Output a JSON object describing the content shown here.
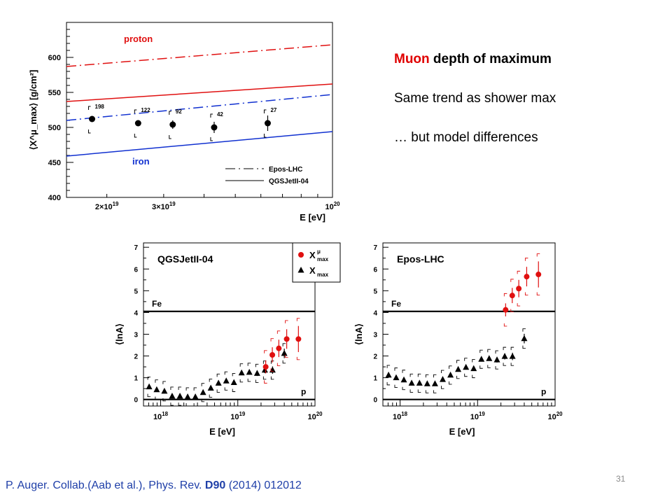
{
  "slide": {
    "bullets": {
      "line1_highlight": "Muon",
      "line1_rest": " depth of maximum",
      "line2": "Same trend as shower max",
      "line3": "… but model differences"
    },
    "citation": {
      "prefix": "P. Auger. Collab.(Aab et al.),    Phys. Rev. ",
      "volume": "D90",
      "suffix": " (2014) 012012"
    },
    "page_number": "31"
  },
  "chart_data": [
    {
      "type": "line",
      "title": "",
      "xlabel": "E [eV]",
      "ylabel": "⟨X^μ_max⟩ [g/cm²]",
      "x_scale": "log",
      "xlim": [
        1.5e+19,
        1e+20
      ],
      "ylim": [
        400,
        650
      ],
      "x_ticks": [
        {
          "value": 2e+19,
          "mantissa": "2×10",
          "exp": "19"
        },
        {
          "value": 3e+19,
          "mantissa": "3×10",
          "exp": "19"
        },
        {
          "value": 1e+20,
          "mantissa": "10",
          "exp": "20"
        }
      ],
      "y_ticks": [
        400,
        450,
        500,
        550,
        600
      ],
      "annotations": {
        "proton": "proton",
        "iron": "iron"
      },
      "legend": {
        "position": "bottom-right",
        "entries": [
          {
            "label": "Epos-LHC",
            "style": "dash-dot"
          },
          {
            "label": "QGSJetII-04",
            "style": "solid"
          }
        ]
      },
      "colors": {
        "proton": "#e01010",
        "iron": "#1030d0",
        "data": "#000000"
      },
      "series": [
        {
          "label": "proton",
          "model": "Epos-LHC",
          "style": "dash-dot",
          "color_key": "proton",
          "x": [
            1.5e+19,
            1e+20
          ],
          "y": [
            587,
            618
          ]
        },
        {
          "label": "proton",
          "model": "QGSJetII-04",
          "style": "solid",
          "color_key": "proton",
          "x": [
            1.5e+19,
            1e+20
          ],
          "y": [
            537,
            562
          ]
        },
        {
          "label": "iron",
          "model": "Epos-LHC",
          "style": "dash-dot",
          "color_key": "iron",
          "x": [
            1.5e+19,
            1e+20
          ],
          "y": [
            510,
            547
          ]
        },
        {
          "label": "iron",
          "model": "QGSJetII-04",
          "style": "solid",
          "color_key": "iron",
          "x": [
            1.5e+19,
            1e+20
          ],
          "y": [
            459,
            494
          ]
        }
      ],
      "points": [
        {
          "x": 1.8e+19,
          "y": 512,
          "err": 4,
          "sys_lo": 492,
          "sys_hi": 530,
          "n": "198"
        },
        {
          "x": 2.5e+19,
          "y": 506,
          "err": 4,
          "sys_lo": 486,
          "sys_hi": 525,
          "n": "122"
        },
        {
          "x": 3.2e+19,
          "y": 504,
          "err": 6,
          "sys_lo": 484,
          "sys_hi": 523,
          "n": "92"
        },
        {
          "x": 4.3e+19,
          "y": 500,
          "err": 8,
          "sys_lo": 481,
          "sys_hi": 519,
          "n": "42"
        },
        {
          "x": 6.3e+19,
          "y": 506,
          "err": 11,
          "sys_lo": 486,
          "sys_hi": 525,
          "n": "27"
        }
      ]
    },
    {
      "type": "scatter",
      "title": "QGSJetII-04",
      "xlabel": "E [eV]",
      "ylabel": "⟨lnA⟩",
      "x_scale": "log",
      "xlim": [
        6e+17,
        1e+20
      ],
      "ylim": [
        -0.3,
        7.2
      ],
      "x_ticks": [
        {
          "value": 1e+18,
          "mantissa": "10",
          "exp": "18"
        },
        {
          "value": 1e+19,
          "mantissa": "10",
          "exp": "19"
        },
        {
          "value": 1e+20,
          "mantissa": "10",
          "exp": "20"
        }
      ],
      "y_ticks": [
        0,
        1,
        2,
        3,
        4,
        5,
        6,
        7
      ],
      "reference_lines": [
        {
          "y": 4.05,
          "label": "Fe"
        },
        {
          "y": 0,
          "label": "p"
        }
      ],
      "legend": {
        "position": "top-right-outside",
        "entries": [
          {
            "base": "X",
            "sup": "μ",
            "sub": "max",
            "marker": "circle",
            "color": "#e01010"
          },
          {
            "base": "X",
            "sup": "",
            "sub": "max",
            "marker": "triangle",
            "color": "#000000"
          }
        ]
      },
      "series": [
        {
          "name": "X_max",
          "marker": "triangle",
          "color": "#000000",
          "points": [
            {
              "x": 7.1e+17,
              "y": 0.58,
              "err": 0.1,
              "sys": 0.45
            },
            {
              "x": 8.9e+17,
              "y": 0.45,
              "err": 0.08,
              "sys": 0.45
            },
            {
              "x": 1.12e+18,
              "y": 0.38,
              "err": 0.08,
              "sys": 0.45
            },
            {
              "x": 1.41e+18,
              "y": 0.15,
              "err": 0.07,
              "sys": 0.42
            },
            {
              "x": 1.78e+18,
              "y": 0.15,
              "err": 0.07,
              "sys": 0.42
            },
            {
              "x": 2.24e+18,
              "y": 0.12,
              "err": 0.07,
              "sys": 0.42
            },
            {
              "x": 2.82e+18,
              "y": 0.12,
              "err": 0.07,
              "sys": 0.42
            },
            {
              "x": 3.55e+18,
              "y": 0.32,
              "err": 0.07,
              "sys": 0.42
            },
            {
              "x": 4.47e+18,
              "y": 0.52,
              "err": 0.07,
              "sys": 0.42
            },
            {
              "x": 5.62e+18,
              "y": 0.75,
              "err": 0.08,
              "sys": 0.42
            },
            {
              "x": 7.08e+18,
              "y": 0.85,
              "err": 0.08,
              "sys": 0.42
            },
            {
              "x": 8.91e+18,
              "y": 0.78,
              "err": 0.08,
              "sys": 0.42
            },
            {
              "x": 1.12e+19,
              "y": 1.22,
              "err": 0.09,
              "sys": 0.42
            },
            {
              "x": 1.41e+19,
              "y": 1.25,
              "err": 0.1,
              "sys": 0.42
            },
            {
              "x": 1.78e+19,
              "y": 1.2,
              "err": 0.12,
              "sys": 0.42
            },
            {
              "x": 2.24e+19,
              "y": 1.35,
              "err": 0.14,
              "sys": 0.42
            },
            {
              "x": 2.82e+19,
              "y": 1.35,
              "err": 0.17,
              "sys": 0.42
            },
            {
              "x": 4e+19,
              "y": 2.12,
              "err": 0.22,
              "sys": 0.45
            }
          ]
        },
        {
          "name": "X^mu_max",
          "marker": "circle",
          "color": "#e01010",
          "points": [
            {
              "x": 2.3e+19,
              "y": 1.5,
              "err": 0.3,
              "sys": 0.75
            },
            {
              "x": 2.8e+19,
              "y": 2.05,
              "err": 0.35,
              "sys": 0.75
            },
            {
              "x": 3.4e+19,
              "y": 2.35,
              "err": 0.4,
              "sys": 0.8
            },
            {
              "x": 4.3e+19,
              "y": 2.78,
              "err": 0.45,
              "sys": 0.85
            },
            {
              "x": 6.1e+19,
              "y": 2.78,
              "err": 0.6,
              "sys": 0.95
            }
          ]
        }
      ]
    },
    {
      "type": "scatter",
      "title": "Epos-LHC",
      "xlabel": "E [eV]",
      "ylabel": "⟨lnA⟩",
      "x_scale": "log",
      "xlim": [
        6e+17,
        1e+20
      ],
      "ylim": [
        -0.3,
        7.2
      ],
      "x_ticks": [
        {
          "value": 1e+18,
          "mantissa": "10",
          "exp": "18"
        },
        {
          "value": 1e+19,
          "mantissa": "10",
          "exp": "19"
        },
        {
          "value": 1e+20,
          "mantissa": "10",
          "exp": "20"
        }
      ],
      "y_ticks": [
        0,
        1,
        2,
        3,
        4,
        5,
        6,
        7
      ],
      "reference_lines": [
        {
          "y": 4.05,
          "label": "Fe"
        },
        {
          "y": 0,
          "label": "p"
        }
      ],
      "series": [
        {
          "name": "X_max",
          "marker": "triangle",
          "color": "#000000",
          "points": [
            {
              "x": 7.1e+17,
              "y": 1.12,
              "err": 0.1,
              "sys": 0.45
            },
            {
              "x": 8.9e+17,
              "y": 1.0,
              "err": 0.08,
              "sys": 0.45
            },
            {
              "x": 1.12e+18,
              "y": 0.9,
              "err": 0.08,
              "sys": 0.45
            },
            {
              "x": 1.41e+18,
              "y": 0.75,
              "err": 0.07,
              "sys": 0.42
            },
            {
              "x": 1.78e+18,
              "y": 0.75,
              "err": 0.07,
              "sys": 0.42
            },
            {
              "x": 2.24e+18,
              "y": 0.72,
              "err": 0.07,
              "sys": 0.42
            },
            {
              "x": 2.82e+18,
              "y": 0.72,
              "err": 0.07,
              "sys": 0.42
            },
            {
              "x": 3.55e+18,
              "y": 0.92,
              "err": 0.07,
              "sys": 0.42
            },
            {
              "x": 4.47e+18,
              "y": 1.12,
              "err": 0.07,
              "sys": 0.42
            },
            {
              "x": 5.62e+18,
              "y": 1.38,
              "err": 0.08,
              "sys": 0.42
            },
            {
              "x": 7.08e+18,
              "y": 1.48,
              "err": 0.08,
              "sys": 0.42
            },
            {
              "x": 8.91e+18,
              "y": 1.42,
              "err": 0.08,
              "sys": 0.42
            },
            {
              "x": 1.12e+19,
              "y": 1.85,
              "err": 0.09,
              "sys": 0.42
            },
            {
              "x": 1.41e+19,
              "y": 1.88,
              "err": 0.1,
              "sys": 0.42
            },
            {
              "x": 1.78e+19,
              "y": 1.82,
              "err": 0.12,
              "sys": 0.42
            },
            {
              "x": 2.24e+19,
              "y": 1.98,
              "err": 0.14,
              "sys": 0.42
            },
            {
              "x": 2.82e+19,
              "y": 1.98,
              "err": 0.17,
              "sys": 0.42
            },
            {
              "x": 4e+19,
              "y": 2.8,
              "err": 0.22,
              "sys": 0.45
            }
          ]
        },
        {
          "name": "X^mu_max",
          "marker": "circle",
          "color": "#e01010",
          "points": [
            {
              "x": 2.3e+19,
              "y": 4.12,
              "err": 0.3,
              "sys": 0.75
            },
            {
              "x": 2.8e+19,
              "y": 4.78,
              "err": 0.35,
              "sys": 0.75
            },
            {
              "x": 3.4e+19,
              "y": 5.1,
              "err": 0.4,
              "sys": 0.8
            },
            {
              "x": 4.3e+19,
              "y": 5.65,
              "err": 0.45,
              "sys": 0.85
            },
            {
              "x": 6.1e+19,
              "y": 5.75,
              "err": 0.6,
              "sys": 0.95
            }
          ]
        }
      ]
    }
  ]
}
